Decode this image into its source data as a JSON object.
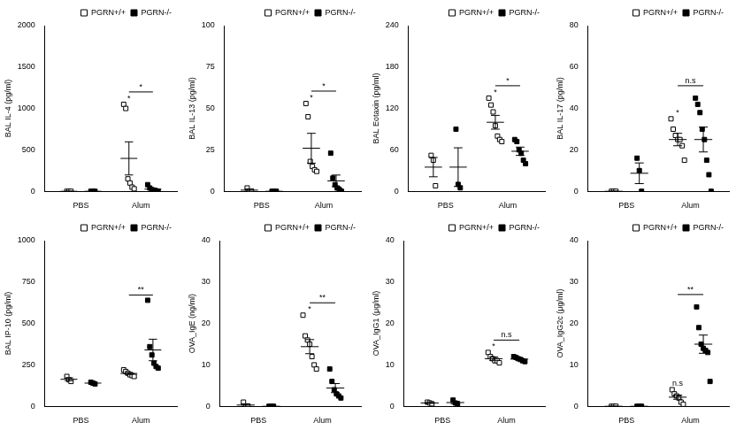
{
  "chart_data": [
    {
      "type": "scatter",
      "y_label": "BAL IL-4 (pg/ml)",
      "categories": [
        "PBS",
        "Alum"
      ],
      "ylim": [
        0,
        2000
      ],
      "yticks": [
        0,
        500,
        1000,
        1500,
        2000
      ],
      "grid": false,
      "legend": "top",
      "series": [
        {
          "name": "PGRN+/+",
          "color": "#000000",
          "marker": "open_square",
          "values": [
            [
              0,
              0,
              0
            ],
            [
              1050,
              1000,
              150,
              100,
              50,
              30
            ]
          ],
          "mean": [
            0,
            397
          ],
          "error": [
            0,
            200
          ]
        },
        {
          "name": "PGRN-/-",
          "color": "#000000",
          "marker": "filled_square",
          "values": [
            [
              0,
              0,
              0
            ],
            [
              80,
              40,
              20,
              10,
              5,
              0
            ]
          ],
          "mean": [
            0,
            26
          ],
          "error": [
            0,
            13
          ]
        }
      ],
      "annotations": [
        {
          "text": "*",
          "category": "Alum",
          "series": "PGRN+/+"
        },
        {
          "text": "*",
          "category": "Alum"
        }
      ]
    },
    {
      "type": "scatter",
      "y_label": "BAL IL-13 (pg/ml)",
      "categories": [
        "PBS",
        "Alum"
      ],
      "ylim": [
        0,
        100
      ],
      "yticks": [
        0,
        25,
        50,
        75,
        100
      ],
      "grid": false,
      "legend": "top",
      "series": [
        {
          "name": "PGRN+/+",
          "color": "#000000",
          "marker": "open_square",
          "values": [
            [
              2,
              0,
              0
            ],
            [
              53,
              45,
              18,
              15,
              13,
              12
            ]
          ],
          "mean": [
            0.7,
            26
          ],
          "error": [
            0.7,
            9
          ]
        },
        {
          "name": "PGRN-/-",
          "color": "#000000",
          "marker": "filled_square",
          "values": [
            [
              0,
              0,
              0
            ],
            [
              23,
              8,
              4,
              2,
              1,
              0
            ]
          ],
          "mean": [
            0,
            6.3
          ],
          "error": [
            0,
            3.5
          ]
        }
      ],
      "annotations": [
        {
          "text": "*",
          "category": "Alum",
          "series": "PGRN+/+"
        },
        {
          "text": "*",
          "category": "Alum"
        }
      ]
    },
    {
      "type": "scatter",
      "y_label": "BAL Eotaxin (pg/ml)",
      "categories": [
        "PBS",
        "Alum"
      ],
      "ylim": [
        0,
        240
      ],
      "yticks": [
        0,
        60,
        120,
        180,
        240
      ],
      "grid": false,
      "legend": "top",
      "series": [
        {
          "name": "PGRN+/+",
          "color": "#000000",
          "marker": "open_square",
          "values": [
            [
              52,
              45,
              8
            ],
            [
              135,
              125,
              115,
              95,
              80,
              75,
              72
            ]
          ],
          "mean": [
            35,
            100
          ],
          "error": [
            14,
            10
          ]
        },
        {
          "name": "PGRN-/-",
          "color": "#000000",
          "marker": "filled_square",
          "values": [
            [
              90,
              10,
              5
            ],
            [
              75,
              72,
              60,
              55,
              45,
              40
            ]
          ],
          "mean": [
            35,
            58
          ],
          "error": [
            28,
            6
          ]
        }
      ],
      "annotations": [
        {
          "text": "*",
          "category": "Alum",
          "series": "PGRN+/+"
        },
        {
          "text": "*",
          "category": "Alum"
        }
      ]
    },
    {
      "type": "scatter",
      "y_label": "BAL IL-17 (pg/ml)",
      "categories": [
        "PBS",
        "Alum"
      ],
      "ylim": [
        0,
        80
      ],
      "yticks": [
        0,
        20,
        40,
        60,
        80
      ],
      "grid": false,
      "legend": "top",
      "series": [
        {
          "name": "PGRN+/+",
          "color": "#000000",
          "marker": "open_square",
          "values": [
            [
              0,
              0,
              0
            ],
            [
              35,
              30,
              27,
              25,
              25,
              22,
              15
            ]
          ],
          "mean": [
            0,
            25
          ],
          "error": [
            0,
            3
          ]
        },
        {
          "name": "PGRN-/-",
          "color": "#000000",
          "marker": "filled_square",
          "values": [
            [
              16,
              10,
              0
            ],
            [
              45,
              42,
              38,
              30,
              25,
              15,
              8,
              0
            ]
          ],
          "mean": [
            8.7,
            25
          ],
          "error": [
            5,
            6
          ]
        }
      ],
      "annotations": [
        {
          "text": "*",
          "category": "Alum",
          "series": "PGRN+/+"
        },
        {
          "text": "n.s",
          "category": "Alum"
        }
      ]
    },
    {
      "type": "scatter",
      "y_label": "BAL IP-10 (pg/ml)",
      "categories": [
        "PBS",
        "Alum"
      ],
      "ylim": [
        0,
        1000
      ],
      "yticks": [
        0,
        250,
        500,
        750,
        1000
      ],
      "grid": false,
      "legend": "top",
      "series": [
        {
          "name": "PGRN+/+",
          "color": "#000000",
          "marker": "open_square",
          "values": [
            [
              180,
              160,
              150
            ],
            [
              220,
              210,
              200,
              190,
              185,
              180
            ]
          ],
          "mean": [
            163,
            198
          ],
          "error": [
            9,
            6
          ]
        },
        {
          "name": "PGRN-/-",
          "color": "#000000",
          "marker": "filled_square",
          "values": [
            [
              145,
              140,
              135
            ],
            [
              640,
              360,
              310,
              260,
              240,
              230
            ]
          ],
          "mean": [
            140,
            340
          ],
          "error": [
            3,
            65
          ]
        }
      ],
      "annotations": [
        {
          "text": "**",
          "category": "Alum"
        }
      ]
    },
    {
      "type": "scatter",
      "y_label": "OVA_IgE (ng/ml)",
      "categories": [
        "PBS",
        "Alum"
      ],
      "ylim": [
        0,
        40
      ],
      "yticks": [
        0,
        10,
        20,
        30,
        40
      ],
      "grid": false,
      "legend": "top",
      "series": [
        {
          "name": "PGRN+/+",
          "color": "#000000",
          "marker": "open_square",
          "values": [
            [
              1,
              0,
              0
            ],
            [
              22,
              17,
              16,
              15,
              12,
              10,
              9
            ]
          ],
          "mean": [
            0.3,
            14.4
          ],
          "error": [
            0.3,
            1.7
          ]
        },
        {
          "name": "PGRN-/-",
          "color": "#000000",
          "marker": "filled_square",
          "values": [
            [
              0,
              0,
              0
            ],
            [
              9,
              6,
              4,
              3,
              2.5,
              2
            ]
          ],
          "mean": [
            0,
            4.4
          ],
          "error": [
            0,
            1.1
          ]
        }
      ],
      "annotations": [
        {
          "text": "*",
          "category": "Alum",
          "series": "PGRN+/+"
        },
        {
          "text": "**",
          "category": "Alum"
        }
      ]
    },
    {
      "type": "scatter",
      "y_label": "OVA_IgG1 (μg/ml)",
      "categories": [
        "PBS",
        "Alum"
      ],
      "ylim": [
        0,
        40
      ],
      "yticks": [
        0,
        10,
        20,
        30,
        40
      ],
      "grid": false,
      "legend": "top",
      "series": [
        {
          "name": "PGRN+/+",
          "color": "#000000",
          "marker": "open_square",
          "values": [
            [
              1,
              0.8,
              0.6
            ],
            [
              13,
              12,
              11.5,
              11,
              11,
              10.5
            ]
          ],
          "mean": [
            0.8,
            11.5
          ],
          "error": [
            0.1,
            0.4
          ]
        },
        {
          "name": "PGRN-/-",
          "color": "#000000",
          "marker": "filled_square",
          "values": [
            [
              1.5,
              0.8,
              0.5
            ],
            [
              12,
              11.8,
              11.5,
              11.3,
              11,
              10.8
            ]
          ],
          "mean": [
            0.9,
            11.4
          ],
          "error": [
            0.3,
            0.2
          ]
        }
      ],
      "annotations": [
        {
          "text": "*",
          "category": "Alum",
          "series": "PGRN+/+"
        },
        {
          "text": "n.s",
          "category": "Alum"
        }
      ]
    },
    {
      "type": "scatter",
      "y_label": "OVA_IgG2c (μg/ml)",
      "categories": [
        "PBS",
        "Alum"
      ],
      "ylim": [
        0,
        40
      ],
      "yticks": [
        0,
        10,
        20,
        30,
        40
      ],
      "grid": false,
      "legend": "top",
      "series": [
        {
          "name": "PGRN+/+",
          "color": "#000000",
          "marker": "open_square",
          "values": [
            [
              0,
              0,
              0
            ],
            [
              4,
              3,
              2.5,
              2,
              1,
              0.5
            ]
          ],
          "mean": [
            0,
            2.2
          ],
          "error": [
            0,
            0.5
          ]
        },
        {
          "name": "PGRN-/-",
          "color": "#000000",
          "marker": "filled_square",
          "values": [
            [
              0,
              0,
              0
            ],
            [
              24,
              19,
              15,
              14,
              13.5,
              13,
              6
            ]
          ],
          "mean": [
            0,
            15
          ],
          "error": [
            0,
            2.2
          ]
        }
      ],
      "annotations": [
        {
          "text": "n.s",
          "category": "Alum",
          "series": "PGRN+/+"
        },
        {
          "text": "**",
          "category": "Alum"
        }
      ]
    }
  ]
}
